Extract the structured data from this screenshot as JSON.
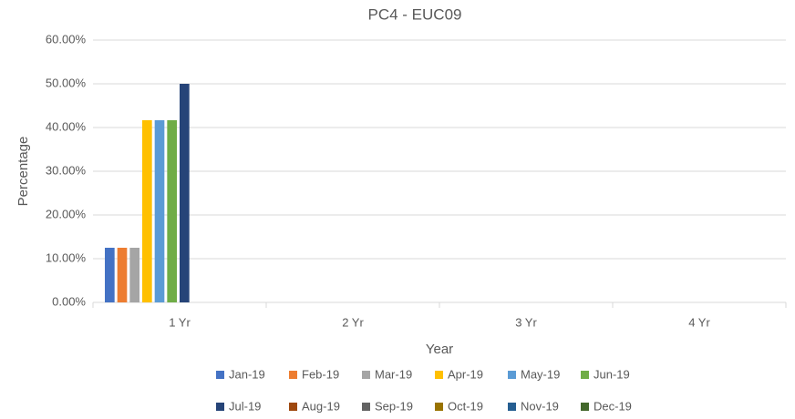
{
  "chart_data": {
    "type": "bar",
    "title": "PC4 - EUC09",
    "x_label": "Year",
    "y_label": "Percentage",
    "categories": [
      "1 Yr",
      "2 Yr",
      "3 Yr",
      "4 Yr"
    ],
    "series": [
      {
        "name": "Jan-19",
        "color": "#4472c4",
        "values": [
          12.5,
          0,
          0,
          0
        ]
      },
      {
        "name": "Feb-19",
        "color": "#ed7d31",
        "values": [
          12.5,
          0,
          0,
          0
        ]
      },
      {
        "name": "Mar-19",
        "color": "#a5a5a5",
        "values": [
          12.5,
          0,
          0,
          0
        ]
      },
      {
        "name": "Apr-19",
        "color": "#ffc000",
        "values": [
          41.67,
          0,
          0,
          0
        ]
      },
      {
        "name": "May-19",
        "color": "#5b9bd5",
        "values": [
          41.67,
          0,
          0,
          0
        ]
      },
      {
        "name": "Jun-19",
        "color": "#70ad47",
        "values": [
          41.67,
          0,
          0,
          0
        ]
      },
      {
        "name": "Jul-19",
        "color": "#264478",
        "values": [
          50,
          0,
          0,
          0
        ]
      },
      {
        "name": "Aug-19",
        "color": "#9e480e",
        "values": [
          0,
          0,
          0,
          0
        ]
      },
      {
        "name": "Sep-19",
        "color": "#636363",
        "values": [
          0,
          0,
          0,
          0
        ]
      },
      {
        "name": "Oct-19",
        "color": "#997300",
        "values": [
          0,
          0,
          0,
          0
        ]
      },
      {
        "name": "Nov-19",
        "color": "#255e91",
        "values": [
          0,
          0,
          0,
          0
        ]
      },
      {
        "name": "Dec-19",
        "color": "#43682b",
        "values": [
          0,
          0,
          0,
          0
        ]
      }
    ],
    "ylim": [
      0,
      60
    ],
    "yticks": [
      {
        "value": 0,
        "label": "0.00%"
      },
      {
        "value": 10,
        "label": "10.00%"
      },
      {
        "value": 20,
        "label": "20.00%"
      },
      {
        "value": 30,
        "label": "30.00%"
      },
      {
        "value": 40,
        "label": "40.00%"
      },
      {
        "value": 50,
        "label": "50.00%"
      },
      {
        "value": 60,
        "label": "60.00%"
      }
    ],
    "grid": true,
    "legend": "bottom"
  }
}
